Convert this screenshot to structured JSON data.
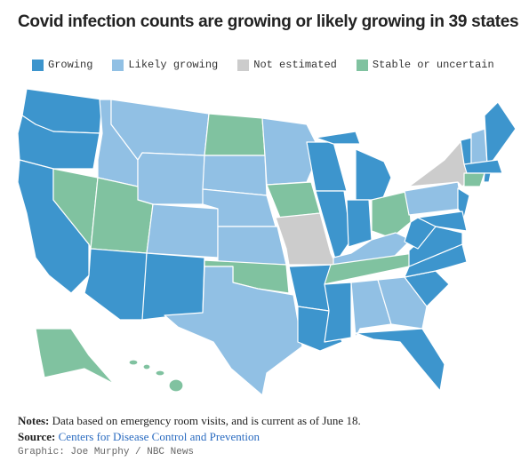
{
  "title": "Covid infection counts are growing or likely growing in 39 states",
  "legend": [
    {
      "label": "Growing",
      "color": "#3d95cd"
    },
    {
      "label": "Likely growing",
      "color": "#91c0e4"
    },
    {
      "label": "Not estimated",
      "color": "#cccccc"
    },
    {
      "label": "Stable or uncertain",
      "color": "#80c2a0"
    }
  ],
  "notes": {
    "label": "Notes:",
    "text": "Data based on emergency room visits, and is current as of June 18."
  },
  "source": {
    "label": "Source:",
    "text": "Centers for Disease Control and Prevention"
  },
  "credit": "Graphic: Joe Murphy / NBC News"
}
